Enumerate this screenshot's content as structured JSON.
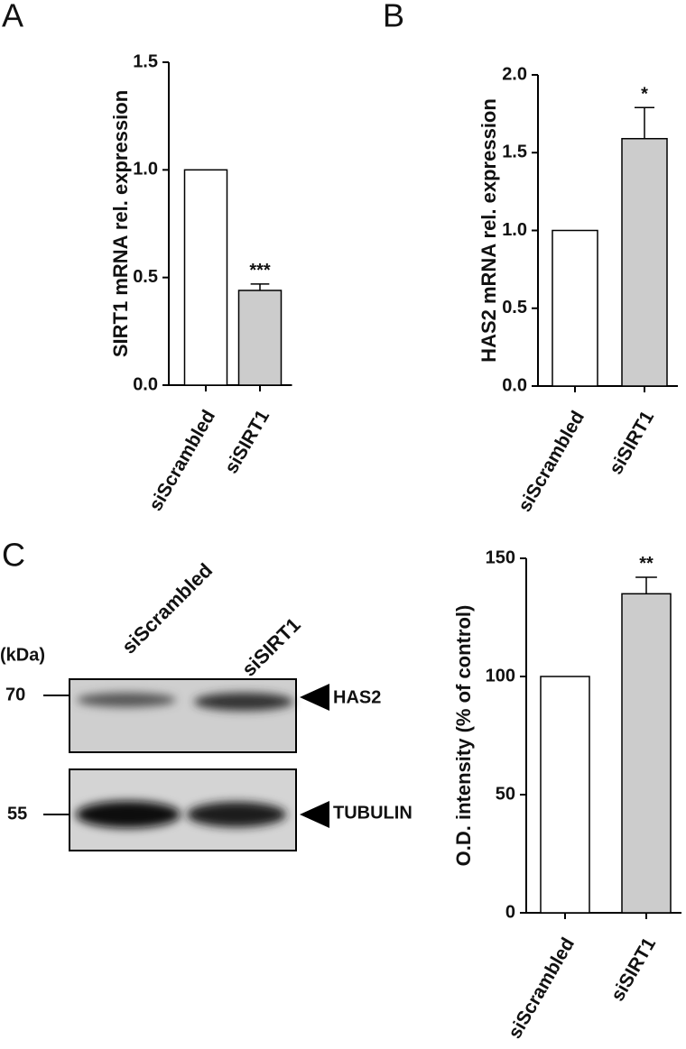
{
  "panels": [
    "A",
    "B",
    "C"
  ],
  "blot": {
    "unit": "(kDa)",
    "lanes": [
      "siScrambled",
      "siSIRT1"
    ],
    "markers": [
      "70",
      "55"
    ],
    "proteins": [
      "HAS2",
      "TUBULIN"
    ]
  },
  "chart_data": [
    {
      "type": "bar",
      "y_label": "SIRT1 mRNA rel. expression",
      "categories": [
        "siScrambled",
        "siSIRT1"
      ],
      "values": [
        1.0,
        0.44
      ],
      "errors": [
        null,
        0.03
      ],
      "annotations": [
        null,
        "***"
      ],
      "colors": [
        "#ffffff",
        "#cccccc"
      ],
      "ylim": [
        0,
        1.5
      ],
      "yticks": [
        {
          "value": 0,
          "label": "0.0"
        },
        {
          "value": 0.5,
          "label": "0.5"
        },
        {
          "value": 1,
          "label": "1.0"
        },
        {
          "value": 1.5,
          "label": "1.5"
        }
      ]
    },
    {
      "type": "bar",
      "y_label": "HAS2 mRNA rel. expression",
      "categories": [
        "siScrambled",
        "siSIRT1"
      ],
      "values": [
        1.0,
        1.59
      ],
      "errors": [
        null,
        0.2
      ],
      "annotations": [
        null,
        "*"
      ],
      "colors": [
        "#ffffff",
        "#cccccc"
      ],
      "ylim": [
        0,
        2
      ],
      "yticks": [
        {
          "value": 0,
          "label": "0.0"
        },
        {
          "value": 0.5,
          "label": "0.5"
        },
        {
          "value": 1,
          "label": "1.0"
        },
        {
          "value": 1.5,
          "label": "1.5"
        },
        {
          "value": 2,
          "label": "2.0"
        }
      ]
    },
    {
      "type": "bar",
      "y_label": "O.D. intensity (% of control)",
      "categories": [
        "siScrambled",
        "siSIRT1"
      ],
      "values": [
        100,
        135
      ],
      "errors": [
        null,
        7
      ],
      "annotations": [
        null,
        "**"
      ],
      "colors": [
        "#ffffff",
        "#cccccc"
      ],
      "ylim": [
        0,
        150
      ],
      "yticks": [
        0,
        50,
        100,
        150
      ]
    }
  ]
}
